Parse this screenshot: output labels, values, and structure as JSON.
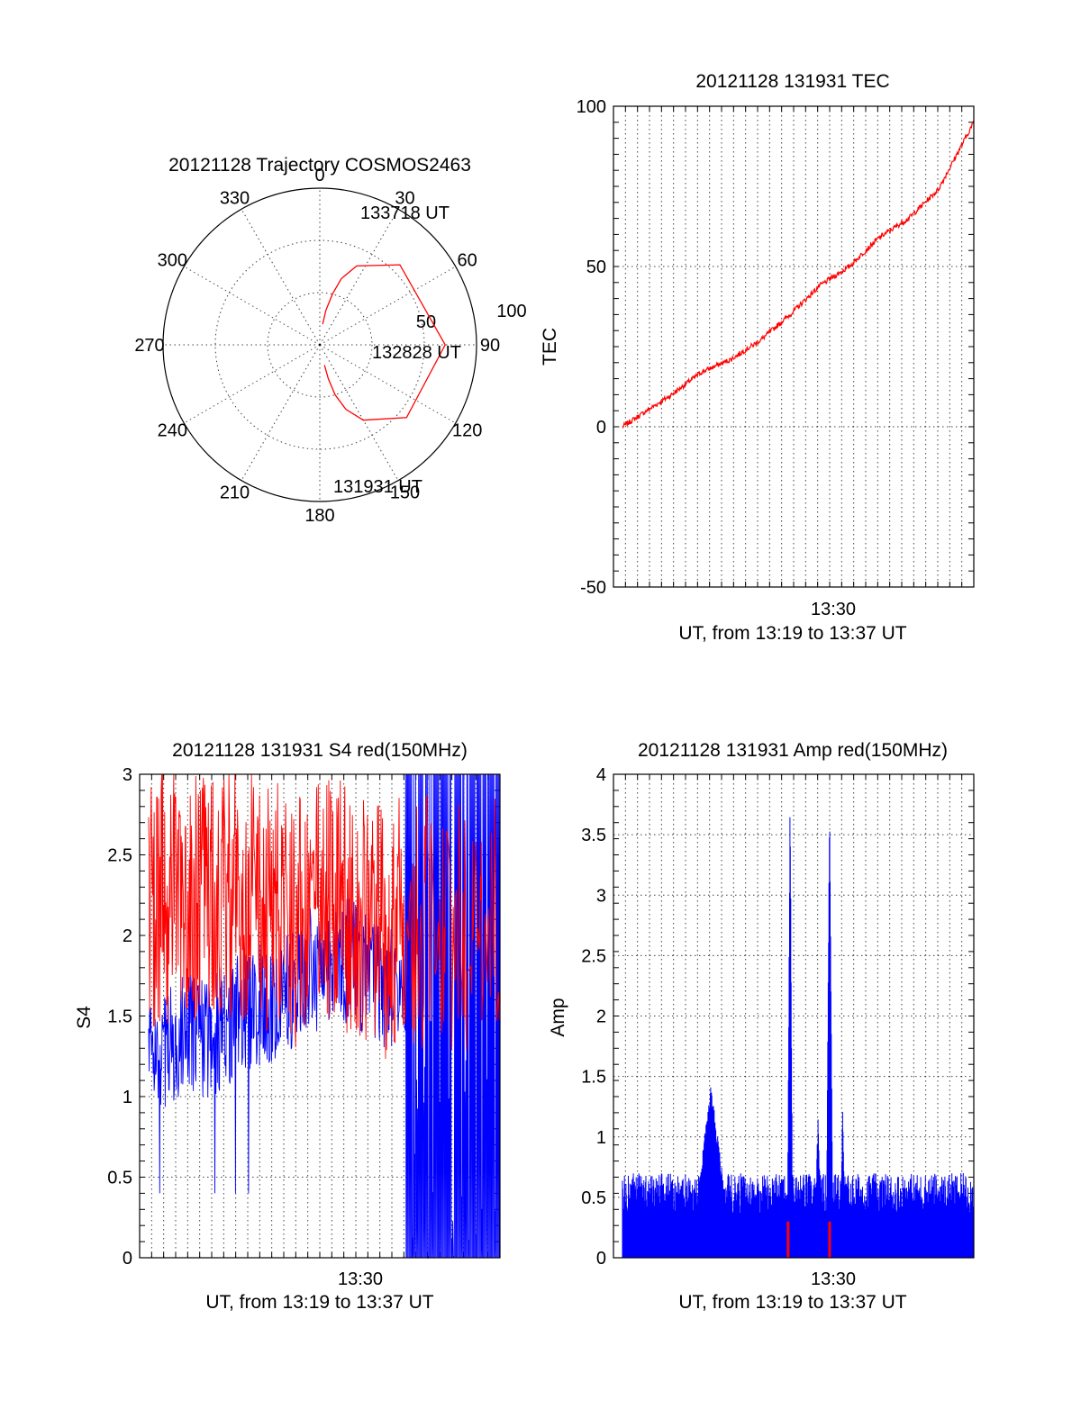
{
  "chart_data": [
    {
      "type": "polar",
      "title": "20121128 Trajectory COSMOS2463",
      "azimuth_labels": [
        "0",
        "30",
        "60",
        "90",
        "120",
        "150",
        "180",
        "210",
        "240",
        "270",
        "300",
        "330"
      ],
      "radial_labels": [
        "50",
        "100"
      ],
      "series": [
        {
          "color": "#ff0000",
          "points": [
            [
              8,
              78
            ],
            [
              10,
              70
            ],
            [
              14,
              60
            ],
            [
              18,
              50
            ],
            [
              25,
              40
            ],
            [
              45,
              25
            ],
            [
              90,
              18
            ],
            [
              130,
              25
            ],
            [
              150,
              40
            ],
            [
              158,
              50
            ],
            [
              163,
              60
            ],
            [
              166,
              70
            ],
            [
              167,
              78
            ]
          ]
        }
      ],
      "annotations": [
        "133718 UT",
        "132828 UT",
        "131931 UT"
      ]
    },
    {
      "type": "line",
      "title": "20121128 131931 TEC",
      "xlabel": "UT, from 13:19 to 13:37 UT",
      "ylabel": "TEC",
      "x_tick_labels": [
        "13:30"
      ],
      "x_range": [
        "13:19:31",
        "13:37:18"
      ],
      "ylim": [
        -50,
        100
      ],
      "yticks": [
        "-50",
        "0",
        "50",
        "100"
      ],
      "grid": true,
      "series": [
        {
          "color": "#ff0000",
          "x": [
            "13:19:31",
            "13:20:30",
            "13:22:00",
            "13:23:30",
            "13:25:00",
            "13:26:30",
            "13:28:00",
            "13:29:30",
            "13:31:00",
            "13:32:30",
            "13:34:00",
            "13:35:30",
            "13:37:18"
          ],
          "values": [
            0,
            4,
            10,
            17,
            21,
            27,
            35,
            44,
            50,
            59,
            65,
            74,
            95
          ]
        }
      ]
    },
    {
      "type": "line",
      "title": "20121128 131931 S4 red(150MHz)",
      "xlabel": "UT, from 13:19 to 13:37 UT",
      "ylabel": "S4",
      "x_tick_labels": [
        "13:30"
      ],
      "x_range": [
        "13:19:31",
        "13:37:18"
      ],
      "ylim": [
        0,
        3
      ],
      "yticks": [
        "0",
        "0.5",
        "1",
        "1.5",
        "2",
        "2.5",
        "3"
      ],
      "grid": true,
      "series": [
        {
          "color": "#0000ff",
          "x": [
            "13:19:31",
            "13:23:00",
            "13:27:00",
            "13:29:00",
            "13:31:00",
            "13:33:00",
            "13:35:00",
            "13:37:18"
          ],
          "values": [
            1.3,
            1.4,
            1.8,
            2.2,
            1.5,
            0.0,
            3.0,
            0.0
          ]
        },
        {
          "color": "#ff0000",
          "x": [
            "13:19:31",
            "13:23:00",
            "13:27:00",
            "13:29:00",
            "13:31:00",
            "13:33:00",
            "13:35:00",
            "13:37:18"
          ],
          "values": [
            2.2,
            2.3,
            2.1,
            2.2,
            2.0,
            2.1,
            2.0,
            2.2
          ]
        }
      ]
    },
    {
      "type": "line",
      "title": "20121128 131931 Amp red(150MHz)",
      "xlabel": "UT, from 13:19 to 13:37 UT",
      "ylabel": "Amp",
      "x_tick_labels": [
        "13:30"
      ],
      "x_range": [
        "13:19:31",
        "13:37:18"
      ],
      "ylim": [
        0,
        4
      ],
      "yticks": [
        "0",
        "0.5",
        "1",
        "1.5",
        "2",
        "2.5",
        "3",
        "3.5",
        "4"
      ],
      "grid": true,
      "series": [
        {
          "color": "#0000ff",
          "x": [
            "13:19:31",
            "13:23:00",
            "13:24:00",
            "13:27:30",
            "13:28:00",
            "13:29:30",
            "13:30:00",
            "13:30:30",
            "13:33:00",
            "13:37:18"
          ],
          "values": [
            0.5,
            0.5,
            1.3,
            0.5,
            3.7,
            0.7,
            3.7,
            1.1,
            0.4,
            0.5
          ]
        },
        {
          "color": "#ff0000",
          "x": [
            "13:27:54",
            "13:30:00"
          ],
          "values": [
            0.3,
            0.3
          ]
        }
      ]
    }
  ]
}
